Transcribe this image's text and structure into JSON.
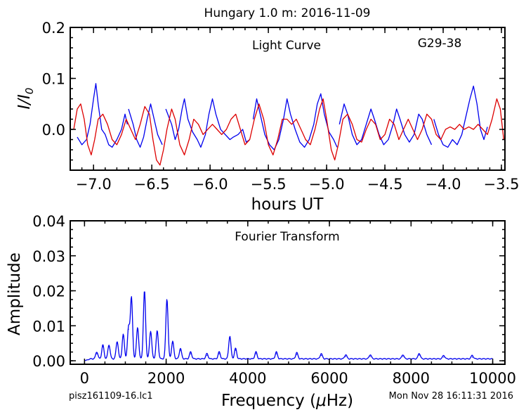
{
  "figure": {
    "title": "Hungary 1.0 m:  2016-11-09",
    "filename": "pisz161109-16.lc1",
    "timestamp": "Mon Nov 28 16:11:31 2016"
  },
  "chart_data": [
    {
      "type": "line",
      "title": "Light Curve",
      "annotation": "G29-38",
      "xlabel": "hours UT",
      "ylabel": "I/I",
      "ylabel_sub": "0",
      "xlim": [
        -7.2,
        -3.47
      ],
      "ylim": [
        -0.08,
        0.2
      ],
      "xticks": [
        -7.0,
        -6.5,
        -6.0,
        -5.5,
        -5.0,
        -4.5,
        -4.0,
        -3.5
      ],
      "xtick_labels": [
        "−7.0",
        "−6.5",
        "−6.0",
        "−5.5",
        "−5.0",
        "−4.5",
        "−4.0",
        "−3.5"
      ],
      "yticks": [
        0.0,
        0.1,
        0.2
      ],
      "ytick_labels": [
        "0.0",
        "0.1",
        "0.2"
      ],
      "series": [
        {
          "color": "#0000ee",
          "segments": [
            [
              [
                -7.14,
                -0.015
              ],
              [
                -7.1,
                -0.03
              ],
              [
                -7.06,
                -0.02
              ],
              [
                -7.03,
                0.01
              ],
              [
                -7.0,
                0.06
              ],
              [
                -6.98,
                0.09
              ],
              [
                -6.96,
                0.05
              ],
              [
                -6.93,
                0.0
              ],
              [
                -6.9,
                -0.01
              ],
              [
                -6.87,
                -0.03
              ],
              [
                -6.84,
                -0.035
              ],
              [
                -6.8,
                -0.02
              ],
              [
                -6.76,
                0.0
              ],
              [
                -6.73,
                0.03
              ],
              [
                -6.71,
                0.01
              ]
            ],
            [
              [
                -6.7,
                0.04
              ],
              [
                -6.66,
                0.01
              ],
              [
                -6.63,
                -0.02
              ],
              [
                -6.6,
                -0.035
              ],
              [
                -6.57,
                -0.015
              ],
              [
                -6.54,
                0.02
              ],
              [
                -6.51,
                0.05
              ],
              [
                -6.48,
                0.02
              ],
              [
                -6.45,
                -0.01
              ],
              [
                -6.41,
                -0.03
              ]
            ],
            [
              [
                -6.38,
                0.04
              ],
              [
                -6.33,
                0.01
              ],
              [
                -6.3,
                -0.02
              ],
              [
                -6.27,
                0.0
              ],
              [
                -6.24,
                0.04
              ],
              [
                -6.22,
                0.06
              ],
              [
                -6.19,
                0.02
              ],
              [
                -6.15,
                -0.005
              ],
              [
                -6.11,
                -0.02
              ],
              [
                -6.08,
                -0.035
              ],
              [
                -6.04,
                -0.01
              ],
              [
                -6.01,
                0.03
              ],
              [
                -5.98,
                0.06
              ],
              [
                -5.95,
                0.03
              ],
              [
                -5.91,
                0.0
              ],
              [
                -5.87,
                -0.01
              ],
              [
                -5.83,
                -0.02
              ],
              [
                -5.8,
                -0.015
              ],
              [
                -5.76,
                -0.01
              ],
              [
                -5.72,
                0.0
              ],
              [
                -5.69,
                -0.025
              ],
              [
                -5.66,
                -0.02
              ]
            ],
            [
              [
                -5.63,
                0.02
              ],
              [
                -5.6,
                0.06
              ],
              [
                -5.57,
                0.03
              ],
              [
                -5.53,
                -0.01
              ],
              [
                -5.49,
                -0.03
              ],
              [
                -5.45,
                -0.04
              ],
              [
                -5.41,
                -0.02
              ],
              [
                -5.37,
                0.02
              ],
              [
                -5.34,
                0.06
              ],
              [
                -5.31,
                0.03
              ],
              [
                -5.27,
                0.0
              ],
              [
                -5.23,
                -0.025
              ],
              [
                -5.19,
                -0.035
              ],
              [
                -5.15,
                -0.02
              ],
              [
                -5.11,
                0.01
              ],
              [
                -5.08,
                0.05
              ],
              [
                -5.05,
                0.07
              ],
              [
                -5.02,
                0.03
              ],
              [
                -4.98,
                -0.005
              ],
              [
                -4.94,
                -0.02
              ],
              [
                -4.91,
                -0.035
              ]
            ],
            [
              [
                -4.89,
                0.01
              ],
              [
                -4.85,
                0.05
              ],
              [
                -4.82,
                0.03
              ],
              [
                -4.78,
                -0.01
              ],
              [
                -4.74,
                -0.03
              ],
              [
                -4.7,
                -0.02
              ],
              [
                -4.66,
                0.01
              ],
              [
                -4.62,
                0.04
              ],
              [
                -4.59,
                0.02
              ],
              [
                -4.55,
                -0.01
              ],
              [
                -4.51,
                -0.03
              ],
              [
                -4.47,
                -0.02
              ],
              [
                -4.43,
                0.01
              ],
              [
                -4.4,
                0.04
              ],
              [
                -4.37,
                0.02
              ],
              [
                -4.33,
                -0.01
              ],
              [
                -4.29,
                -0.025
              ],
              [
                -4.25,
                -0.01
              ],
              [
                -4.21,
                0.03
              ],
              [
                -4.18,
                0.02
              ],
              [
                -4.14,
                -0.01
              ],
              [
                -4.1,
                -0.03
              ]
            ],
            [
              [
                -4.08,
                0.02
              ],
              [
                -4.04,
                -0.01
              ],
              [
                -4.0,
                -0.03
              ],
              [
                -3.96,
                -0.035
              ],
              [
                -3.92,
                -0.02
              ],
              [
                -3.88,
                -0.03
              ],
              [
                -3.84,
                -0.01
              ],
              [
                -3.8,
                0.03
              ],
              [
                -3.77,
                0.06
              ],
              [
                -3.74,
                0.085
              ],
              [
                -3.71,
                0.05
              ],
              [
                -3.68,
                0.0
              ],
              [
                -3.65,
                -0.02
              ],
              [
                -3.62,
                0.005
              ]
            ]
          ]
        },
        {
          "color": "#dd0000",
          "segments": [
            [
              [
                -7.17,
                0.0
              ],
              [
                -7.14,
                0.04
              ],
              [
                -7.11,
                0.05
              ],
              [
                -7.08,
                0.02
              ],
              [
                -7.05,
                -0.03
              ],
              [
                -7.02,
                -0.05
              ],
              [
                -6.99,
                -0.02
              ],
              [
                -6.96,
                0.02
              ],
              [
                -6.92,
                0.03
              ],
              [
                -6.88,
                0.01
              ],
              [
                -6.84,
                -0.02
              ],
              [
                -6.8,
                -0.03
              ],
              [
                -6.76,
                -0.01
              ],
              [
                -6.72,
                0.02
              ],
              [
                -6.68,
                0.0
              ],
              [
                -6.64,
                -0.02
              ],
              [
                -6.6,
                0.01
              ],
              [
                -6.56,
                0.045
              ],
              [
                -6.52,
                0.03
              ],
              [
                -6.49,
                -0.02
              ],
              [
                -6.46,
                -0.06
              ],
              [
                -6.43,
                -0.07
              ],
              [
                -6.4,
                -0.04
              ],
              [
                -6.37,
                0.0
              ],
              [
                -6.33,
                0.04
              ],
              [
                -6.3,
                0.02
              ],
              [
                -6.26,
                -0.03
              ],
              [
                -6.22,
                -0.05
              ],
              [
                -6.18,
                -0.02
              ],
              [
                -6.14,
                0.02
              ],
              [
                -6.1,
                0.01
              ],
              [
                -6.06,
                -0.01
              ],
              [
                -6.02,
                0.0
              ],
              [
                -5.98,
                0.01
              ],
              [
                -5.94,
                0.0
              ],
              [
                -5.9,
                -0.01
              ],
              [
                -5.86,
                0.0
              ],
              [
                -5.82,
                0.02
              ],
              [
                -5.78,
                0.03
              ],
              [
                -5.74,
                0.0
              ],
              [
                -5.7,
                -0.03
              ],
              [
                -5.66,
                -0.02
              ],
              [
                -5.62,
                0.02
              ],
              [
                -5.58,
                0.05
              ],
              [
                -5.54,
                0.02
              ],
              [
                -5.5,
                -0.03
              ],
              [
                -5.46,
                -0.05
              ],
              [
                -5.42,
                -0.02
              ],
              [
                -5.38,
                0.02
              ],
              [
                -5.34,
                0.02
              ],
              [
                -5.3,
                0.01
              ],
              [
                -5.26,
                0.02
              ],
              [
                -5.22,
                0.0
              ],
              [
                -5.18,
                -0.02
              ],
              [
                -5.14,
                -0.03
              ],
              [
                -5.1,
                0.0
              ],
              [
                -5.06,
                0.04
              ],
              [
                -5.03,
                0.06
              ],
              [
                -5.0,
                0.02
              ],
              [
                -4.96,
                -0.04
              ],
              [
                -4.93,
                -0.06
              ],
              [
                -4.9,
                -0.03
              ],
              [
                -4.86,
                0.02
              ],
              [
                -4.82,
                0.03
              ],
              [
                -4.78,
                0.01
              ],
              [
                -4.74,
                -0.02
              ],
              [
                -4.7,
                -0.025
              ],
              [
                -4.66,
                0.0
              ],
              [
                -4.62,
                0.02
              ],
              [
                -4.58,
                0.01
              ],
              [
                -4.54,
                -0.02
              ],
              [
                -4.5,
                -0.01
              ],
              [
                -4.46,
                0.02
              ],
              [
                -4.42,
                0.01
              ],
              [
                -4.38,
                -0.02
              ],
              [
                -4.34,
                0.0
              ],
              [
                -4.3,
                0.02
              ],
              [
                -4.26,
                0.0
              ],
              [
                -4.22,
                -0.02
              ],
              [
                -4.18,
                0.0
              ],
              [
                -4.14,
                0.03
              ],
              [
                -4.1,
                0.02
              ],
              [
                -4.06,
                -0.01
              ],
              [
                -4.02,
                -0.02
              ],
              [
                -3.98,
                0.0
              ],
              [
                -3.94,
                0.005
              ],
              [
                -3.9,
                0.0
              ],
              [
                -3.86,
                0.01
              ],
              [
                -3.82,
                0.0
              ],
              [
                -3.78,
                0.005
              ],
              [
                -3.74,
                0.0
              ],
              [
                -3.7,
                0.01
              ],
              [
                -3.66,
                0.0
              ],
              [
                -3.62,
                -0.01
              ],
              [
                -3.58,
                0.02
              ],
              [
                -3.54,
                0.06
              ],
              [
                -3.51,
                0.04
              ],
              [
                -3.48,
                -0.02
              ]
            ]
          ]
        }
      ]
    },
    {
      "type": "line",
      "title": "Fourier Transform",
      "xlabel": "Frequency (",
      "xlabel_mu": "μ",
      "xlabel_end": "Hz)",
      "ylabel": "Amplitude",
      "xlim": [
        -350,
        10300
      ],
      "ylim": [
        -0.001,
        0.04
      ],
      "xticks": [
        0,
        2000,
        4000,
        6000,
        8000,
        10000
      ],
      "xtick_labels": [
        "0",
        "2000",
        "4000",
        "6000",
        "8000",
        "10000"
      ],
      "yticks": [
        0.0,
        0.01,
        0.02,
        0.03,
        0.04
      ],
      "ytick_labels": [
        "0.00",
        "0.01",
        "0.02",
        "0.03",
        "0.04"
      ],
      "series": [
        {
          "color": "#0000ee",
          "peaks": [
            [
              300,
              0.002
            ],
            [
              450,
              0.004
            ],
            [
              600,
              0.004
            ],
            [
              800,
              0.005
            ],
            [
              950,
              0.007
            ],
            [
              1080,
              0.009
            ],
            [
              1150,
              0.0175
            ],
            [
              1300,
              0.009
            ],
            [
              1470,
              0.0195
            ],
            [
              1620,
              0.008
            ],
            [
              1780,
              0.008
            ],
            [
              2020,
              0.0172
            ],
            [
              2160,
              0.005
            ],
            [
              2350,
              0.003
            ],
            [
              2600,
              0.002
            ],
            [
              3000,
              0.0015
            ],
            [
              3300,
              0.002
            ],
            [
              3560,
              0.0065
            ],
            [
              3700,
              0.003
            ],
            [
              4200,
              0.002
            ],
            [
              4700,
              0.002
            ],
            [
              5200,
              0.0018
            ],
            [
              5800,
              0.0015
            ],
            [
              6400,
              0.0012
            ],
            [
              7000,
              0.0012
            ],
            [
              7800,
              0.0012
            ],
            [
              8200,
              0.0016
            ],
            [
              8800,
              0.001
            ],
            [
              9500,
              0.001
            ]
          ]
        }
      ]
    }
  ]
}
